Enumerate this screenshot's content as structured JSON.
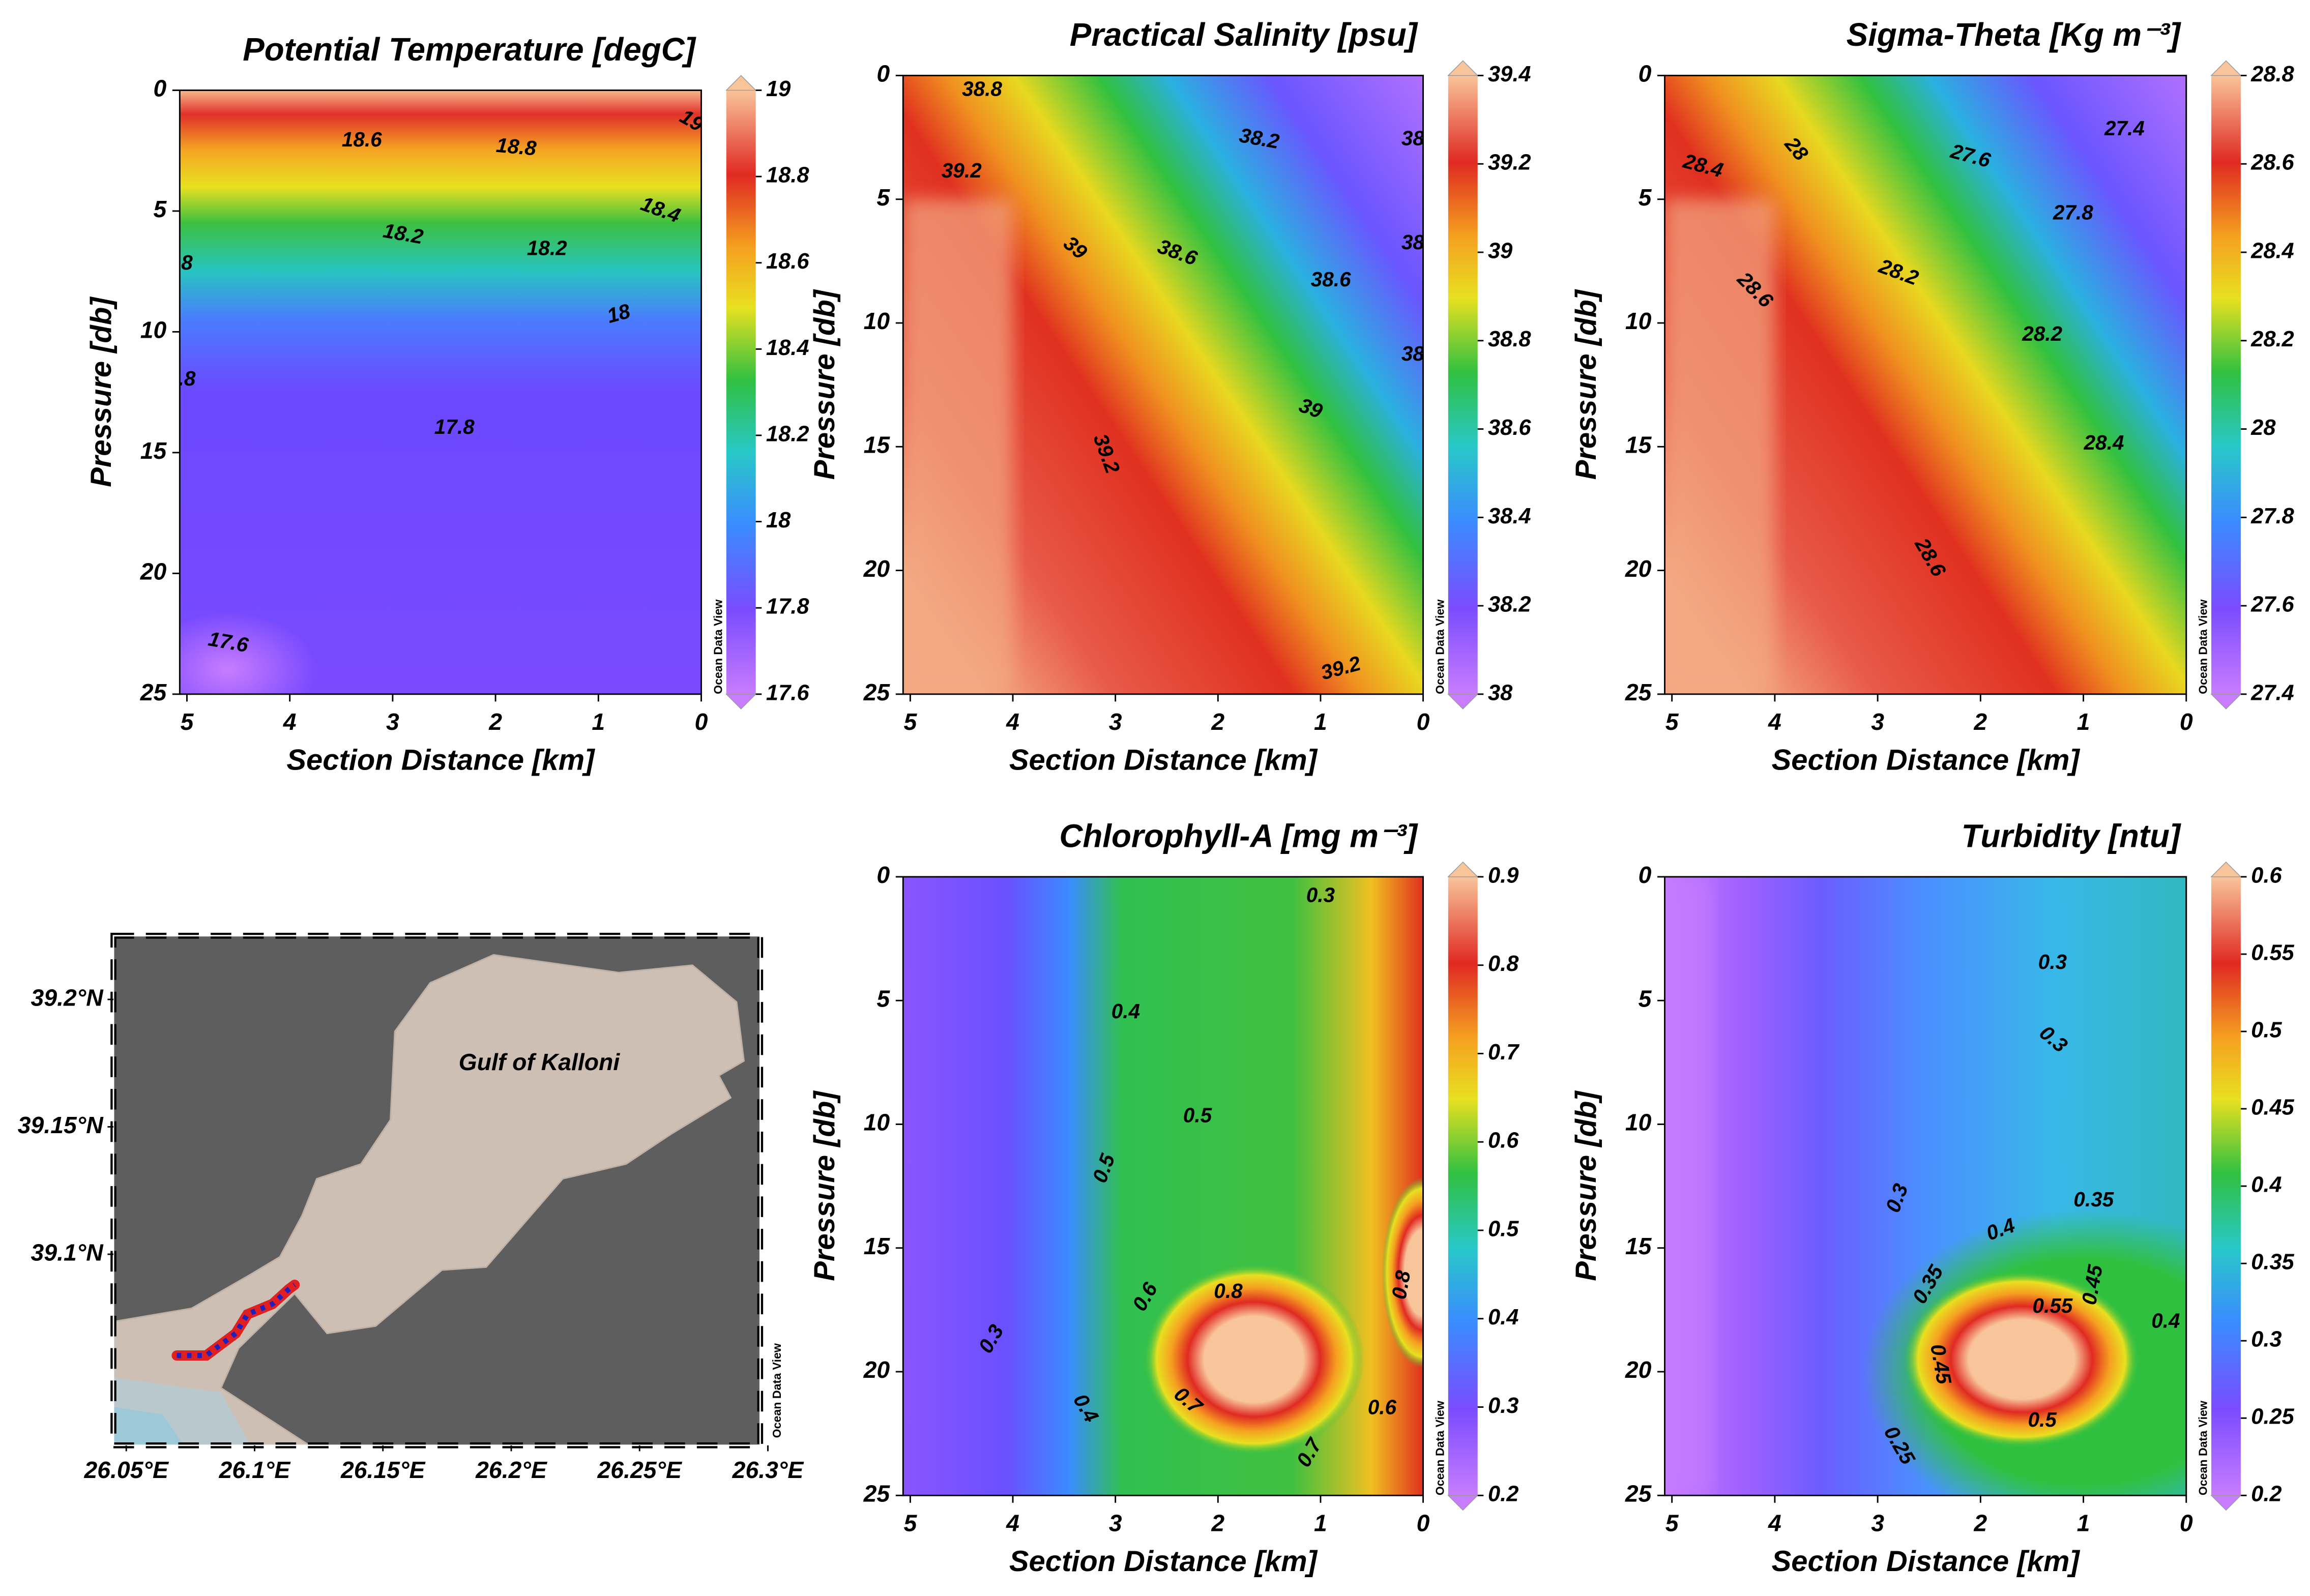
{
  "chart_data": [
    {
      "type": "contour",
      "title": "Potential Temperature [degC]",
      "x_label": "Section Distance [km]",
      "y_label": "Pressure [db]",
      "xlim": [
        5.07,
        0
      ],
      "xticks": [
        5,
        4,
        3,
        2,
        1,
        0
      ],
      "ylim": [
        0,
        25
      ],
      "yticks": [
        0,
        5,
        10,
        15,
        20,
        25
      ],
      "y_inverted": true,
      "zlim": [
        17.6,
        19
      ],
      "zticks": [
        17.6,
        17.8,
        18,
        18.2,
        18.4,
        18.6,
        18.8,
        19
      ],
      "watermark": "Ocean Data View",
      "contour_labels": [
        "18.6",
        "18.8",
        "18.4",
        "18.2",
        "18.2",
        "18",
        "17.8",
        "17.6",
        "19",
        "8",
        ".8"
      ]
    },
    {
      "type": "contour",
      "title": "Practical Salinity [psu]",
      "x_label": "Section Distance [km]",
      "y_label": "Pressure [db]",
      "xlim": [
        5.07,
        0
      ],
      "xticks": [
        5,
        4,
        3,
        2,
        1,
        0
      ],
      "ylim": [
        0,
        25
      ],
      "yticks": [
        0,
        5,
        10,
        15,
        20,
        25
      ],
      "y_inverted": true,
      "zlim": [
        38,
        39.4
      ],
      "zticks": [
        38,
        38.2,
        38.4,
        38.6,
        38.8,
        39,
        39.2,
        39.4
      ],
      "watermark": "Ocean Data View",
      "contour_labels": [
        "38.8",
        "38.2",
        "39.2",
        "39",
        "38.6",
        "38.6",
        "39",
        "39.2",
        "39.2",
        "38",
        "38",
        "38"
      ]
    },
    {
      "type": "contour",
      "title": "Sigma-Theta [Kg m⁻³]",
      "x_label": "Section Distance [km]",
      "y_label": "Pressure [db]",
      "xlim": [
        5.07,
        0
      ],
      "xticks": [
        5,
        4,
        3,
        2,
        1,
        0
      ],
      "ylim": [
        0,
        25
      ],
      "yticks": [
        0,
        5,
        10,
        15,
        20,
        25
      ],
      "y_inverted": true,
      "zlim": [
        27.4,
        28.8
      ],
      "zticks": [
        27.4,
        27.6,
        27.8,
        28,
        28.2,
        28.4,
        28.6,
        28.8
      ],
      "watermark": "Ocean Data View",
      "contour_labels": [
        "27.4",
        "28",
        "27.6",
        "28.4",
        "27.8",
        "28.2",
        "28.6",
        "28.2",
        "28.4",
        "28.6"
      ]
    },
    {
      "type": "map",
      "label": "Gulf of Kalloni",
      "xlim": [
        26.045,
        26.297
      ],
      "xticks": [
        {
          "value": 26.05,
          "label": "26.05°E"
        },
        {
          "value": 26.1,
          "label": "26.1°E"
        },
        {
          "value": 26.15,
          "label": "26.15°E"
        },
        {
          "value": 26.2,
          "label": "26.2°E"
        },
        {
          "value": 26.25,
          "label": "26.25°E"
        },
        {
          "value": 26.3,
          "label": "26.3°E"
        }
      ],
      "ylim": [
        39.025,
        39.225
      ],
      "yticks": [
        {
          "value": 39.1,
          "label": "39.1°N"
        },
        {
          "value": 39.15,
          "label": "39.15°N"
        },
        {
          "value": 39.2,
          "label": "39.2°N"
        }
      ],
      "watermark": "Ocean Data View"
    },
    {
      "type": "contour",
      "title": "Chlorophyll-A [mg m⁻³]",
      "x_label": "Section Distance [km]",
      "y_label": "Pressure [db]",
      "xlim": [
        5.07,
        0
      ],
      "xticks": [
        5,
        4,
        3,
        2,
        1,
        0
      ],
      "ylim": [
        0,
        25
      ],
      "yticks": [
        0,
        5,
        10,
        15,
        20,
        25
      ],
      "y_inverted": true,
      "zlim": [
        0.2,
        0.9
      ],
      "zticks": [
        0.2,
        0.3,
        0.4,
        0.5,
        0.6,
        0.7,
        0.8,
        0.9
      ],
      "watermark": "Ocean Data View",
      "contour_labels": [
        "0.3",
        "0.4",
        "0.5",
        "0.5",
        "0.6",
        "0.8",
        "0.8",
        "0.7",
        "0.7",
        "0.6",
        "0.3",
        "0.4"
      ]
    },
    {
      "type": "contour",
      "title": "Turbidity [ntu]",
      "x_label": "Section Distance [km]",
      "y_label": "Pressure [db]",
      "xlim": [
        5.07,
        0
      ],
      "xticks": [
        5,
        4,
        3,
        2,
        1,
        0
      ],
      "ylim": [
        0,
        25
      ],
      "yticks": [
        0,
        5,
        10,
        15,
        20,
        25
      ],
      "y_inverted": true,
      "zlim": [
        0.2,
        0.6
      ],
      "zticks": [
        0.2,
        0.25,
        0.3,
        0.35,
        0.4,
        0.45,
        0.5,
        0.55,
        0.6
      ],
      "watermark": "Ocean Data View",
      "contour_labels": [
        "0.3",
        "0.3",
        "0.35",
        "0.3",
        "0.4",
        "0.35",
        "0.45",
        "0.55",
        "0.45",
        "0.5",
        "0.25",
        "0.4"
      ]
    }
  ]
}
